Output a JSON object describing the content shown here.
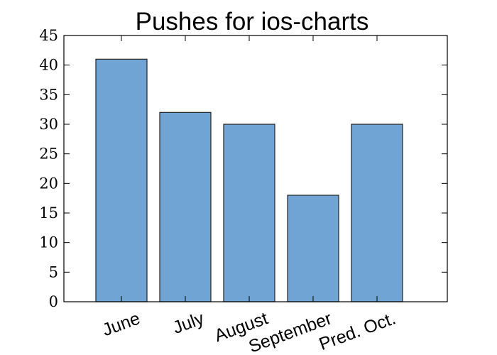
{
  "chart_data": {
    "type": "bar",
    "title": "Pushes for ios-charts",
    "xlabel": "",
    "ylabel": "",
    "categories": [
      "June",
      "July",
      "August",
      "September",
      "Pred. Oct."
    ],
    "values": [
      41,
      32,
      30,
      18,
      30
    ],
    "ylim": [
      0,
      45
    ],
    "yticks": [
      0,
      5,
      10,
      15,
      20,
      25,
      30,
      35,
      40,
      45
    ],
    "grid": false,
    "legend": "none",
    "bar_color": "#6fa4d4",
    "x_tick_rotation_deg": -20
  }
}
